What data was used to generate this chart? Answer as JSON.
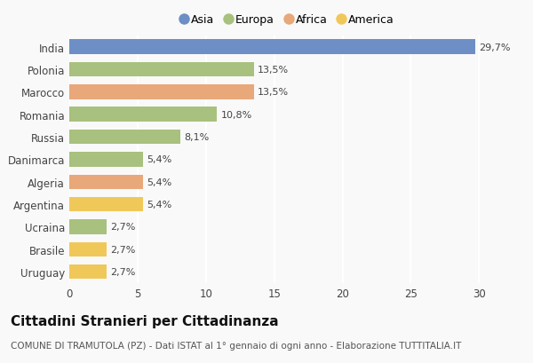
{
  "categories": [
    "Uruguay",
    "Brasile",
    "Ucraina",
    "Argentina",
    "Algeria",
    "Danimarca",
    "Russia",
    "Romania",
    "Marocco",
    "Polonia",
    "India"
  ],
  "values": [
    2.7,
    2.7,
    2.7,
    5.4,
    5.4,
    5.4,
    8.1,
    10.8,
    13.5,
    13.5,
    29.7
  ],
  "labels": [
    "2,7%",
    "2,7%",
    "2,7%",
    "5,4%",
    "5,4%",
    "5,4%",
    "8,1%",
    "10,8%",
    "13,5%",
    "13,5%",
    "29,7%"
  ],
  "bar_colors": [
    "#f0c85a",
    "#f0c85a",
    "#a8c17e",
    "#f0c85a",
    "#e8a87a",
    "#a8c17e",
    "#a8c17e",
    "#a8c17e",
    "#e8a87a",
    "#a8c17e",
    "#6e8fc5"
  ],
  "legend_labels": [
    "Asia",
    "Europa",
    "Africa",
    "America"
  ],
  "legend_colors": [
    "#6e8fc5",
    "#a8c17e",
    "#e8a87a",
    "#f0c85a"
  ],
  "title": "Cittadini Stranieri per Cittadinanza",
  "subtitle": "COMUNE DI TRAMUTOLA (PZ) - Dati ISTAT al 1° gennaio di ogni anno - Elaborazione TUTTITALIA.IT",
  "xlim": [
    0,
    32
  ],
  "xticks": [
    0,
    5,
    10,
    15,
    20,
    25,
    30
  ],
  "background_color": "#f9f9f9",
  "bar_height": 0.65,
  "label_fontsize": 8,
  "tick_fontsize": 8.5,
  "title_fontsize": 11,
  "subtitle_fontsize": 7.5
}
